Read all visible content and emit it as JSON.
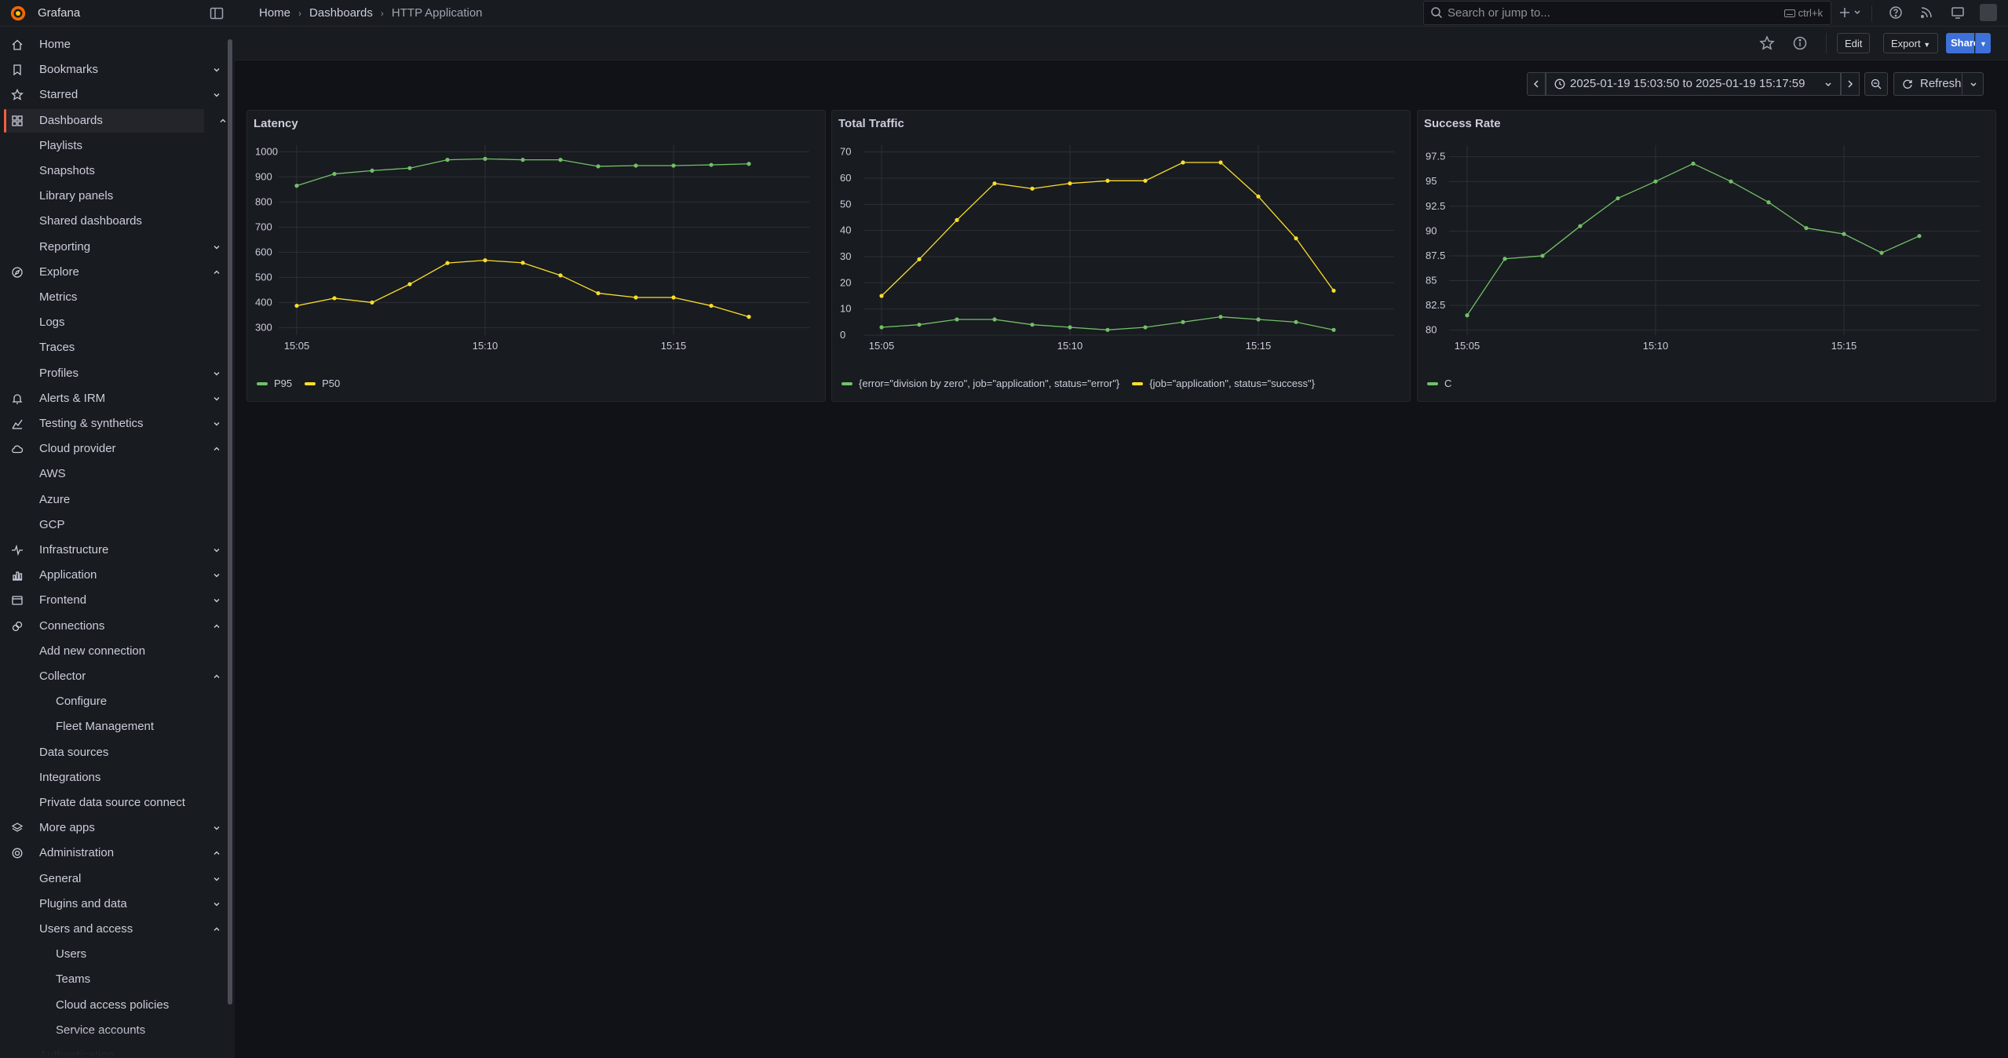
{
  "brand": {
    "name": "Grafana",
    "accent": "#f55f3e"
  },
  "breadcrumb": [
    "Home",
    "Dashboards",
    "HTTP Application"
  ],
  "search": {
    "placeholder": "Search or jump to...",
    "shortcut": "ctrl+k"
  },
  "toolbar": {
    "edit": "Edit",
    "export": "Export",
    "share": "Share"
  },
  "time": {
    "range": "2025-01-19 15:03:50 to 2025-01-19 15:17:59",
    "refresh": "Refresh"
  },
  "sidebar": {
    "items": [
      {
        "label": "Home",
        "icon": "home-icon",
        "chev": "",
        "level": 0
      },
      {
        "label": "Bookmarks",
        "icon": "bookmark-icon",
        "chev": "down",
        "level": 0
      },
      {
        "label": "Starred",
        "icon": "star-icon",
        "chev": "down",
        "level": 0
      },
      {
        "label": "Dashboards",
        "icon": "apps-icon",
        "chev": "up",
        "level": 0,
        "active": true
      },
      {
        "label": "Playlists",
        "chev": "",
        "level": 1
      },
      {
        "label": "Snapshots",
        "chev": "",
        "level": 1
      },
      {
        "label": "Library panels",
        "chev": "",
        "level": 1
      },
      {
        "label": "Shared dashboards",
        "chev": "",
        "level": 1
      },
      {
        "label": "Reporting",
        "chev": "down",
        "level": 1
      },
      {
        "label": "Explore",
        "icon": "compass-icon",
        "chev": "up",
        "level": 0
      },
      {
        "label": "Metrics",
        "chev": "",
        "level": 1
      },
      {
        "label": "Logs",
        "chev": "",
        "level": 1
      },
      {
        "label": "Traces",
        "chev": "",
        "level": 1
      },
      {
        "label": "Profiles",
        "chev": "down",
        "level": 1
      },
      {
        "label": "Alerts & IRM",
        "icon": "bell-icon",
        "chev": "down",
        "level": 0
      },
      {
        "label": "Testing & synthetics",
        "icon": "chart-icon",
        "chev": "down",
        "level": 0
      },
      {
        "label": "Cloud provider",
        "icon": "cloud-icon",
        "chev": "up",
        "level": 0
      },
      {
        "label": "AWS",
        "chev": "",
        "level": 1
      },
      {
        "label": "Azure",
        "chev": "",
        "level": 1
      },
      {
        "label": "GCP",
        "chev": "",
        "level": 1
      },
      {
        "label": "Infrastructure",
        "icon": "heartbeat-icon",
        "chev": "down",
        "level": 0
      },
      {
        "label": "Application",
        "icon": "bar-chart-icon",
        "chev": "down",
        "level": 0
      },
      {
        "label": "Frontend",
        "icon": "browser-icon",
        "chev": "down",
        "level": 0
      },
      {
        "label": "Connections",
        "icon": "plug-icon",
        "chev": "up",
        "level": 0
      },
      {
        "label": "Add new connection",
        "chev": "",
        "level": 1
      },
      {
        "label": "Collector",
        "chev": "up",
        "level": 1
      },
      {
        "label": "Configure",
        "chev": "",
        "level": 2
      },
      {
        "label": "Fleet Management",
        "chev": "",
        "level": 2
      },
      {
        "label": "Data sources",
        "chev": "",
        "level": 1
      },
      {
        "label": "Integrations",
        "chev": "",
        "level": 1
      },
      {
        "label": "Private data source connect",
        "chev": "",
        "level": 1
      },
      {
        "label": "More apps",
        "icon": "layers-icon",
        "chev": "down",
        "level": 0
      },
      {
        "label": "Administration",
        "icon": "cog-icon",
        "chev": "up",
        "level": 0
      },
      {
        "label": "General",
        "chev": "down",
        "level": 1
      },
      {
        "label": "Plugins and data",
        "chev": "down",
        "level": 1
      },
      {
        "label": "Users and access",
        "chev": "up",
        "level": 1
      },
      {
        "label": "Users",
        "chev": "",
        "level": 2
      },
      {
        "label": "Teams",
        "chev": "",
        "level": 2
      },
      {
        "label": "Cloud access policies",
        "chev": "",
        "level": 2
      },
      {
        "label": "Service accounts",
        "chev": "",
        "level": 2
      },
      {
        "label": "Authentication",
        "chev": "",
        "level": 1
      }
    ]
  },
  "chart_data": [
    {
      "type": "line",
      "title": "Latency",
      "x": [
        "15:05",
        "15:06",
        "15:07",
        "15:08",
        "15:09",
        "15:10",
        "15:11",
        "15:12",
        "15:13",
        "15:14",
        "15:15",
        "15:16",
        "15:17"
      ],
      "xticks": [
        "15:05",
        "15:10",
        "15:15"
      ],
      "yticks": [
        300,
        400,
        500,
        600,
        700,
        800,
        900,
        1000
      ],
      "ylim": [
        270,
        1020
      ],
      "series": [
        {
          "name": "P95",
          "color": "#73bf69",
          "values": [
            865,
            912,
            925,
            935,
            968,
            972,
            968,
            968,
            942,
            945,
            945,
            948,
            952
          ]
        },
        {
          "name": "P50",
          "color": "#fade2a",
          "values": [
            387,
            417,
            400,
            473,
            557,
            568,
            558,
            508,
            437,
            420,
            420,
            387,
            343
          ]
        }
      ],
      "grid": true,
      "legend": "bottom-left"
    },
    {
      "type": "line",
      "title": "Total Traffic",
      "x": [
        "15:05",
        "15:06",
        "15:07",
        "15:08",
        "15:09",
        "15:10",
        "15:11",
        "15:12",
        "15:13",
        "15:14",
        "15:15",
        "15:16",
        "15:17"
      ],
      "xticks": [
        "15:05",
        "15:10",
        "15:15"
      ],
      "yticks": [
        0,
        10,
        20,
        30,
        40,
        50,
        60,
        70
      ],
      "ylim": [
        0,
        72
      ],
      "series": [
        {
          "name": "{error=\"division by zero\", job=\"application\", status=\"error\"}",
          "color": "#73bf69",
          "values": [
            3,
            4,
            6,
            6,
            4,
            3,
            2,
            3,
            5,
            7,
            6,
            5,
            2
          ]
        },
        {
          "name": "{job=\"application\", status=\"success\"}",
          "color": "#fade2a",
          "values": [
            15,
            29,
            44,
            58,
            56,
            58,
            59,
            59,
            66,
            66,
            53,
            37,
            17
          ]
        }
      ],
      "grid": true,
      "legend": "bottom-left"
    },
    {
      "type": "line",
      "title": "Success Rate",
      "x": [
        "15:05",
        "15:06",
        "15:07",
        "15:08",
        "15:09",
        "15:10",
        "15:11",
        "15:12",
        "15:13",
        "15:14",
        "15:15",
        "15:16",
        "15:17"
      ],
      "xticks": [
        "15:05",
        "15:10",
        "15:15"
      ],
      "yticks": [
        80,
        82.5,
        85,
        87.5,
        90,
        92.5,
        95,
        97.5
      ],
      "ylim": [
        79.5,
        98.5
      ],
      "series": [
        {
          "name": "C",
          "color": "#73bf69",
          "values": [
            81.5,
            87.2,
            87.5,
            90.5,
            93.3,
            95,
            96.8,
            95,
            92.9,
            90.3,
            89.7,
            87.8,
            89.5
          ]
        }
      ],
      "grid": true,
      "legend": "bottom-left"
    }
  ]
}
